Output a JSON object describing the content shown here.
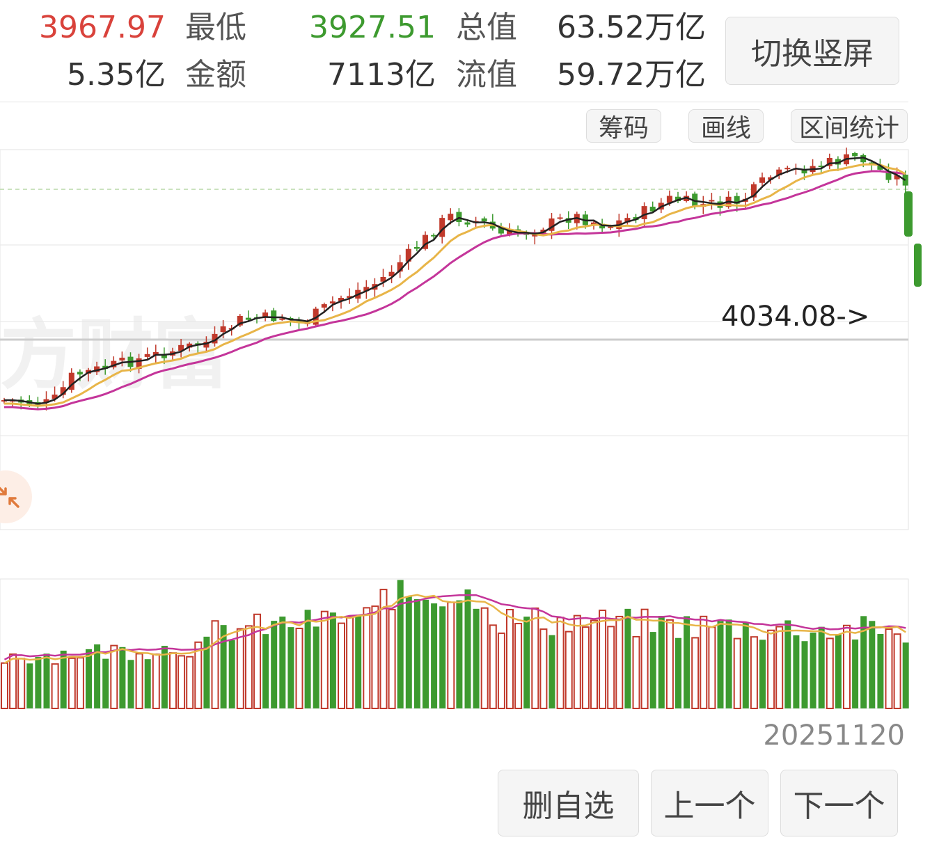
{
  "header": {
    "high_value": "3967.97",
    "low_label": "最低",
    "low_value": "3927.51",
    "total_value_label": "总值",
    "total_value": "63.52万亿",
    "volume_value": "5.35亿",
    "amount_label": "金额",
    "amount_value": "7113亿",
    "float_value_label": "流值",
    "float_value": "59.72万亿",
    "switch_button": "切换竖屏"
  },
  "toolbar": {
    "chips": "筹码",
    "draw_line": "画线",
    "range_stats": "区间统计"
  },
  "chart": {
    "watermark": "方财富",
    "high_annotation": "4034.08->",
    "last_date": "20251120"
  },
  "bottom_actions": {
    "delete_favorite": "删自选",
    "previous": "上一个",
    "next": "下一个"
  },
  "colors": {
    "up": "#c0392b",
    "down": "#3d9a2f",
    "ma5": "#222222",
    "ma10": "#e8b548",
    "ma20": "#c4359a"
  },
  "icons": {
    "collapse": "collapse-arrows-icon"
  }
}
